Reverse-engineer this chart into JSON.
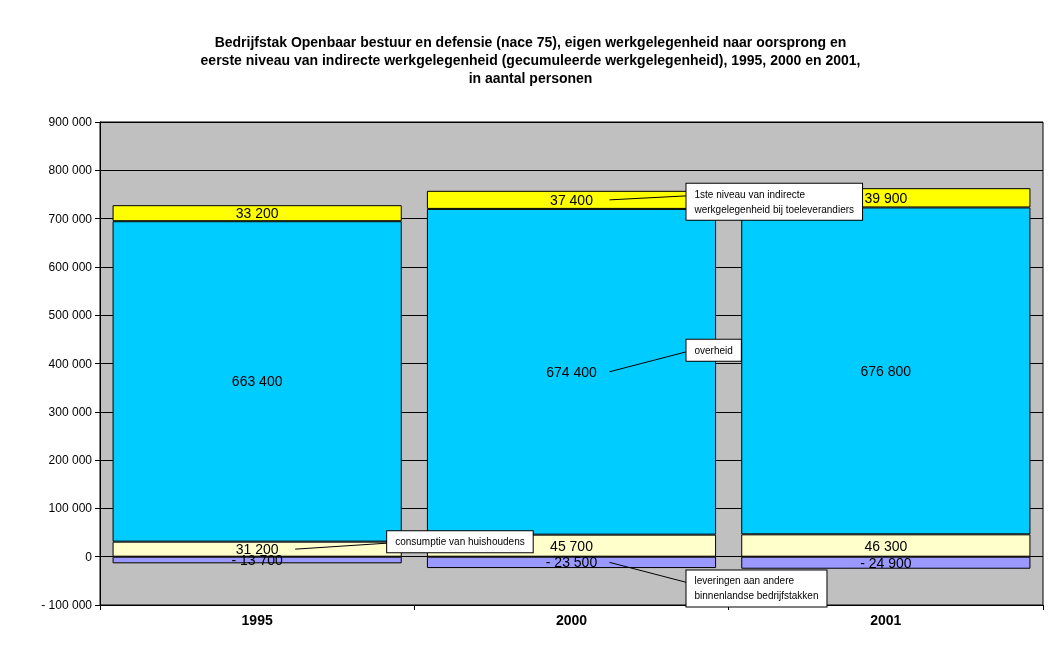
{
  "chart_data": {
    "type": "bar",
    "stacked": true,
    "title": "Bedrijfstak Openbaar bestuur en defensie (nace 75), eigen werkgelegenheid naar oorsprong en\neerste niveau van indirecte werkgelegenheid (gecumuleerde werkgelegenheid), 1995, 2000 en 2001,\nin aantal personen",
    "categories": [
      "1995",
      "2000",
      "2001"
    ],
    "series": [
      {
        "color": "#9999ff",
        "values": [
          -13700,
          -23500,
          -24900
        ],
        "value_labels": [
          "- 13 700",
          "- 23 500",
          "- 24 900"
        ]
      },
      {
        "color": "#ffffcc",
        "values": [
          31200,
          45700,
          46300
        ],
        "value_labels": [
          "31 200",
          "45 700",
          "46 300"
        ]
      },
      {
        "color": "#00ccff",
        "values": [
          663400,
          674400,
          676800
        ],
        "value_labels": [
          "663 400",
          "674 400",
          "676 800"
        ]
      },
      {
        "color": "#ffff00",
        "values": [
          33200,
          37400,
          39900
        ],
        "value_labels": [
          "33 200",
          "37 400",
          "39 900"
        ]
      }
    ],
    "ylim": [
      -100000,
      900000
    ],
    "yticks": [
      {
        "value": -100000,
        "label": "- 100 000"
      },
      0,
      {
        "value": 100000,
        "label": "100 000"
      },
      {
        "value": 200000,
        "label": "200 000"
      },
      {
        "value": 300000,
        "label": "300 000"
      },
      {
        "value": 400000,
        "label": "400 000"
      },
      {
        "value": 500000,
        "label": "500 000"
      },
      {
        "value": 600000,
        "label": "600 000"
      },
      {
        "value": 700000,
        "label": "700 000"
      },
      {
        "value": 800000,
        "label": "800 000"
      },
      {
        "value": 900000,
        "label": "900 000"
      }
    ],
    "grid": "y",
    "annotations": [
      "1ste niveau van indirecte\nwerkgelegenheid bij toeleverandiers",
      "overheid",
      "consumptie van huishoudens",
      "leveringen aan andere\nbinnenlandse bedrijfstakken"
    ]
  }
}
